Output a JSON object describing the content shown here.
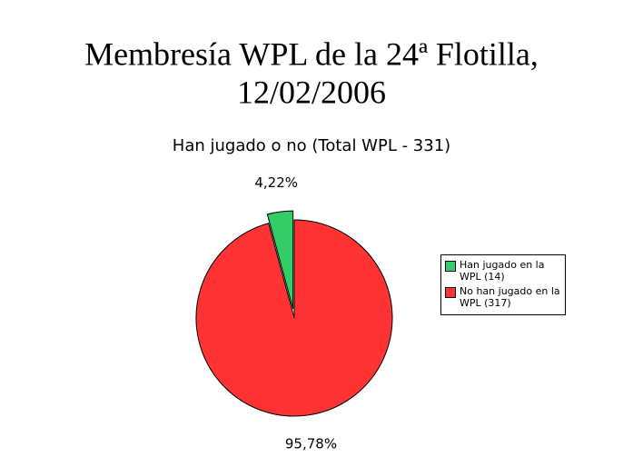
{
  "chart_data": {
    "type": "pie",
    "title": [
      "Membresía WPL de la 24ª Flotilla,",
      "12/02/2006"
    ],
    "subtitle": "Han jugado o no (Total WPL - 331)",
    "categories": [
      "Han jugado en la WPL (14)",
      "No han jugado en la WPL (317)"
    ],
    "values": [
      4.22,
      95.78
    ],
    "value_labels": [
      "4,22%",
      "95,78%"
    ],
    "colors": [
      "#33cc66",
      "#ff3333"
    ],
    "legend": "right"
  }
}
